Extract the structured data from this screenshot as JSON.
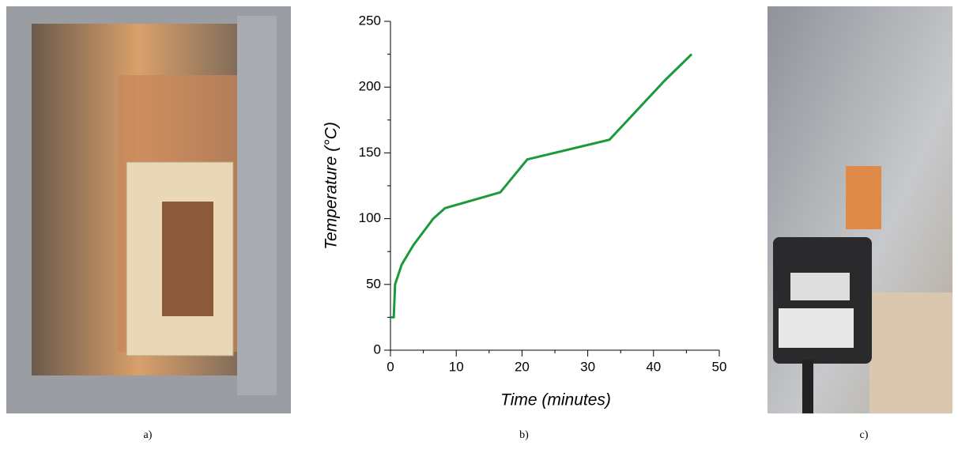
{
  "chart_data": {
    "type": "line",
    "x_label": "Time (minutes)",
    "y_label": "Temperature (°C)",
    "x": [
      0,
      0.5,
      0.7,
      1.7,
      3.5,
      6.5,
      8.3,
      16.7,
      20.8,
      33.3,
      41.7,
      45.8
    ],
    "series": [
      {
        "color": "#1a9a3a",
        "values": [
          25,
          25,
          50,
          65,
          80,
          100,
          108,
          120,
          145,
          160,
          205,
          225
        ]
      }
    ],
    "xlim": [
      0,
      50
    ],
    "xticks": [
      0,
      10,
      20,
      30,
      40,
      50
    ],
    "xminorticks": [
      5,
      15,
      25,
      35,
      45
    ],
    "ylim": [
      0,
      250
    ],
    "yticks": [
      0,
      50,
      100,
      150,
      200,
      250
    ],
    "yminorticks": [
      25,
      75,
      125,
      175,
      225
    ]
  },
  "panel_labels": [
    "a)",
    "b)",
    "c)"
  ]
}
